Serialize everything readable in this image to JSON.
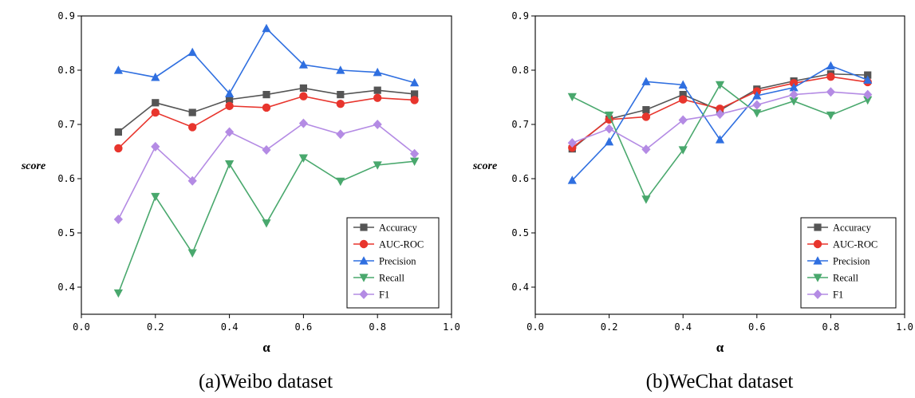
{
  "colors": {
    "Accuracy": "#555555",
    "AUC-ROC": "#e8352d",
    "Precision": "#2f6fe0",
    "Recall": "#49a86d",
    "F1": "#b48be4"
  },
  "markers": {
    "Accuracy": "square",
    "AUC-ROC": "circle",
    "Precision": "triangle-up",
    "Recall": "triangle-down",
    "F1": "diamond"
  },
  "chart_data": [
    {
      "type": "line",
      "caption": "(a)Weibo dataset",
      "xlabel": "α",
      "ylabel": "score",
      "xlim": [
        0.0,
        1.0
      ],
      "ylim": [
        0.35,
        0.9
      ],
      "xticks": [
        "0.0",
        "0.2",
        "0.4",
        "0.6",
        "0.8",
        "1.0"
      ],
      "yticks": [
        "0.4",
        "0.5",
        "0.6",
        "0.7",
        "0.8",
        "0.9"
      ],
      "legend_position": "bottom-right",
      "x": [
        0.1,
        0.2,
        0.3,
        0.4,
        0.5,
        0.6,
        0.7,
        0.8,
        0.9
      ],
      "series": [
        {
          "name": "Accuracy",
          "values": [
            0.686,
            0.74,
            0.722,
            0.746,
            0.755,
            0.767,
            0.755,
            0.763,
            0.756
          ]
        },
        {
          "name": "AUC-ROC",
          "values": [
            0.656,
            0.722,
            0.695,
            0.734,
            0.731,
            0.752,
            0.738,
            0.749,
            0.745
          ]
        },
        {
          "name": "Precision",
          "values": [
            0.8,
            0.787,
            0.833,
            0.757,
            0.877,
            0.81,
            0.8,
            0.796,
            0.777
          ]
        },
        {
          "name": "Recall",
          "values": [
            0.389,
            0.567,
            0.463,
            0.627,
            0.518,
            0.638,
            0.595,
            0.625,
            0.632
          ]
        },
        {
          "name": "F1",
          "values": [
            0.525,
            0.659,
            0.596,
            0.686,
            0.653,
            0.702,
            0.682,
            0.7,
            0.646
          ]
        }
      ]
    },
    {
      "type": "line",
      "caption": "(b)WeChat dataset",
      "xlabel": "α",
      "ylabel": "score",
      "xlim": [
        0.0,
        1.0
      ],
      "ylim": [
        0.35,
        0.9
      ],
      "xticks": [
        "0.0",
        "0.2",
        "0.4",
        "0.6",
        "0.8",
        "1.0"
      ],
      "yticks": [
        "0.4",
        "0.5",
        "0.6",
        "0.7",
        "0.8",
        "0.9"
      ],
      "legend_position": "bottom-right",
      "x": [
        0.1,
        0.2,
        0.3,
        0.4,
        0.5,
        0.6,
        0.7,
        0.8,
        0.9
      ],
      "series": [
        {
          "name": "Accuracy",
          "values": [
            0.655,
            0.71,
            0.727,
            0.755,
            0.726,
            0.765,
            0.78,
            0.793,
            0.791
          ]
        },
        {
          "name": "AUC-ROC",
          "values": [
            0.657,
            0.709,
            0.714,
            0.746,
            0.729,
            0.761,
            0.776,
            0.788,
            0.778
          ]
        },
        {
          "name": "Precision",
          "values": [
            0.597,
            0.668,
            0.779,
            0.773,
            0.672,
            0.753,
            0.768,
            0.808,
            0.782
          ]
        },
        {
          "name": "Recall",
          "values": [
            0.751,
            0.717,
            0.562,
            0.653,
            0.773,
            0.721,
            0.743,
            0.717,
            0.745
          ]
        },
        {
          "name": "F1",
          "values": [
            0.666,
            0.692,
            0.654,
            0.708,
            0.719,
            0.736,
            0.755,
            0.76,
            0.755
          ]
        }
      ]
    }
  ]
}
